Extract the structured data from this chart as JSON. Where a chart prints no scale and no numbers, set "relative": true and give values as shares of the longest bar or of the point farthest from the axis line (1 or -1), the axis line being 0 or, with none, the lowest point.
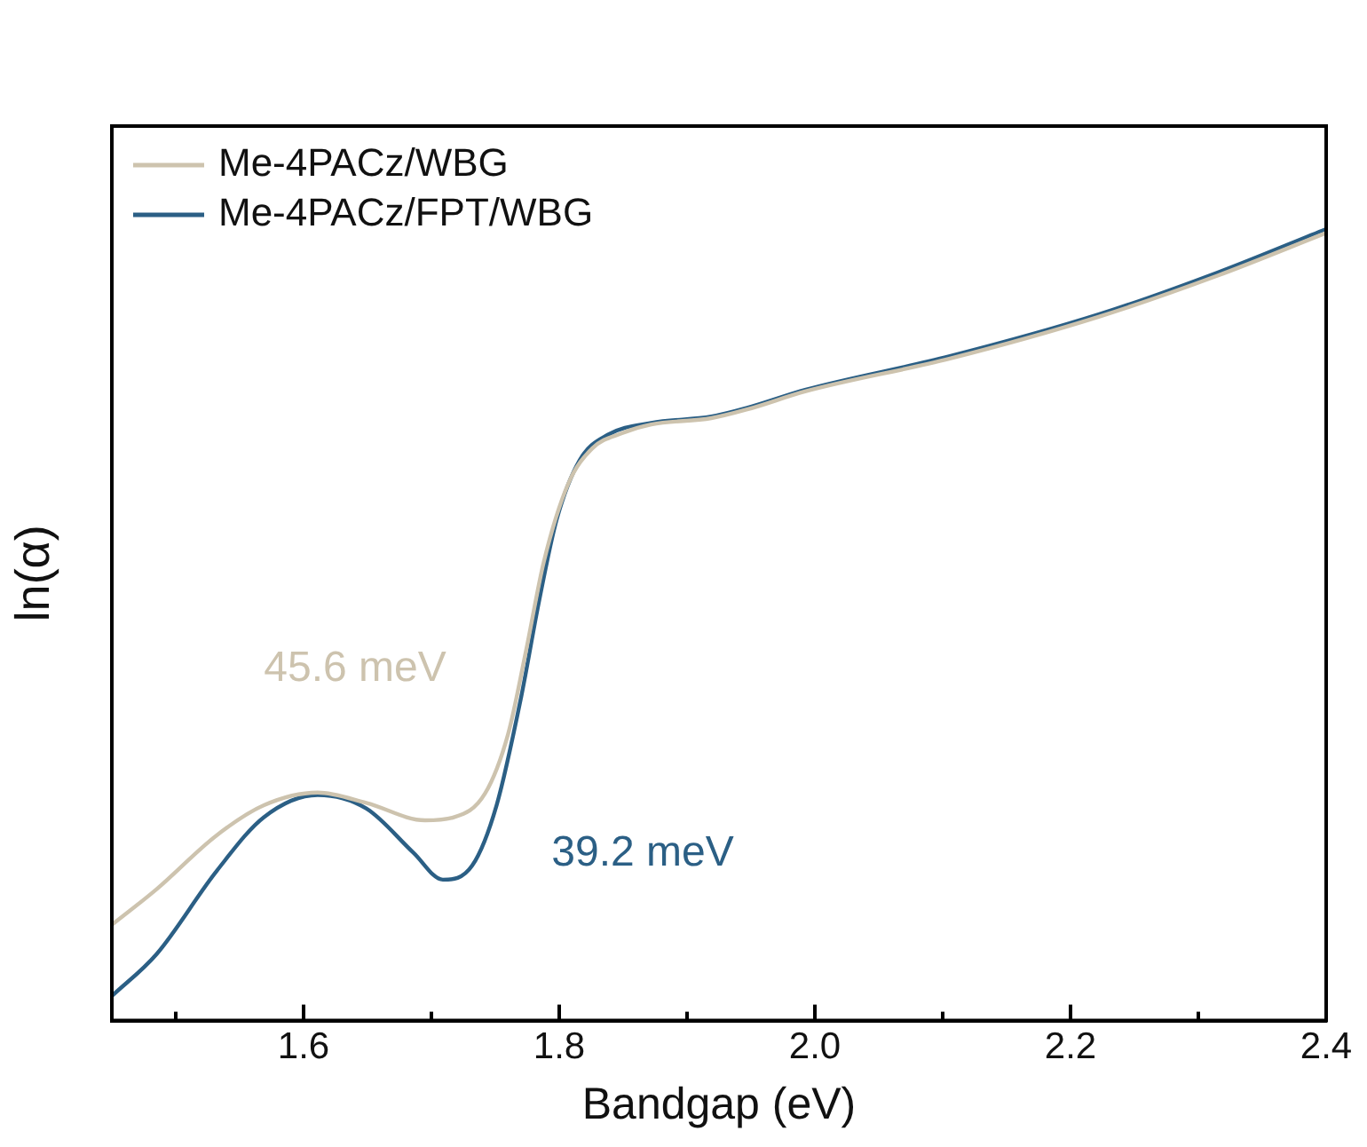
{
  "chart_data": {
    "type": "line",
    "xlabel": "Bandgap (eV)",
    "ylabel": "ln(α)",
    "relative": true,
    "xlim": [
      1.45,
      2.4
    ],
    "xticks": [
      {
        "value": 1.5,
        "label": null
      },
      1.6,
      {
        "value": 1.7,
        "label": null
      },
      1.8,
      {
        "value": 1.9,
        "label": null
      },
      {
        "value": 2,
        "label": "2.0"
      },
      {
        "value": 2.1,
        "label": null
      },
      2.2,
      {
        "value": 2.3,
        "label": null
      },
      2.4
    ],
    "tick_labels": "x",
    "grid": false,
    "legend": "top left",
    "marker": "none",
    "line_style": "solid",
    "annotations": [
      "45.6 meV",
      "39.2 meV"
    ],
    "series": [
      {
        "name": "Me-4PACz/WBG",
        "color": "#cdc3ae",
        "x": [
          1.45,
          1.485,
          1.532,
          1.569,
          1.611,
          1.649,
          1.695,
          1.718,
          1.742,
          1.76,
          1.774,
          1.788,
          1.807,
          1.826,
          1.849,
          1.872,
          1.919,
          1.947,
          1.993,
          2.105,
          2.222,
          2.315,
          2.4
        ],
        "values": [
          0.121,
          0.166,
          0.234,
          0.272,
          0.288,
          0.275,
          0.253,
          0.257,
          0.287,
          0.362,
          0.467,
          0.58,
          0.678,
          0.723,
          0.742,
          0.753,
          0.761,
          0.772,
          0.795,
          0.836,
          0.889,
          0.941,
          0.995
        ]
      },
      {
        "name": "Me-4PACz/FPT/WBG",
        "color": "#2b5f85",
        "x": [
          1.45,
          1.485,
          1.532,
          1.569,
          1.611,
          1.649,
          1.686,
          1.709,
          1.732,
          1.751,
          1.77,
          1.784,
          1.798,
          1.816,
          1.838,
          1.872,
          1.919,
          1.947,
          1.993,
          2.105,
          2.222,
          2.315,
          2.4
        ],
        "values": [
          0.031,
          0.084,
          0.189,
          0.257,
          0.285,
          0.268,
          0.212,
          0.178,
          0.196,
          0.272,
          0.407,
          0.528,
          0.633,
          0.708,
          0.74,
          0.755,
          0.763,
          0.774,
          0.797,
          0.839,
          0.892,
          0.945,
          1
        ]
      }
    ]
  }
}
